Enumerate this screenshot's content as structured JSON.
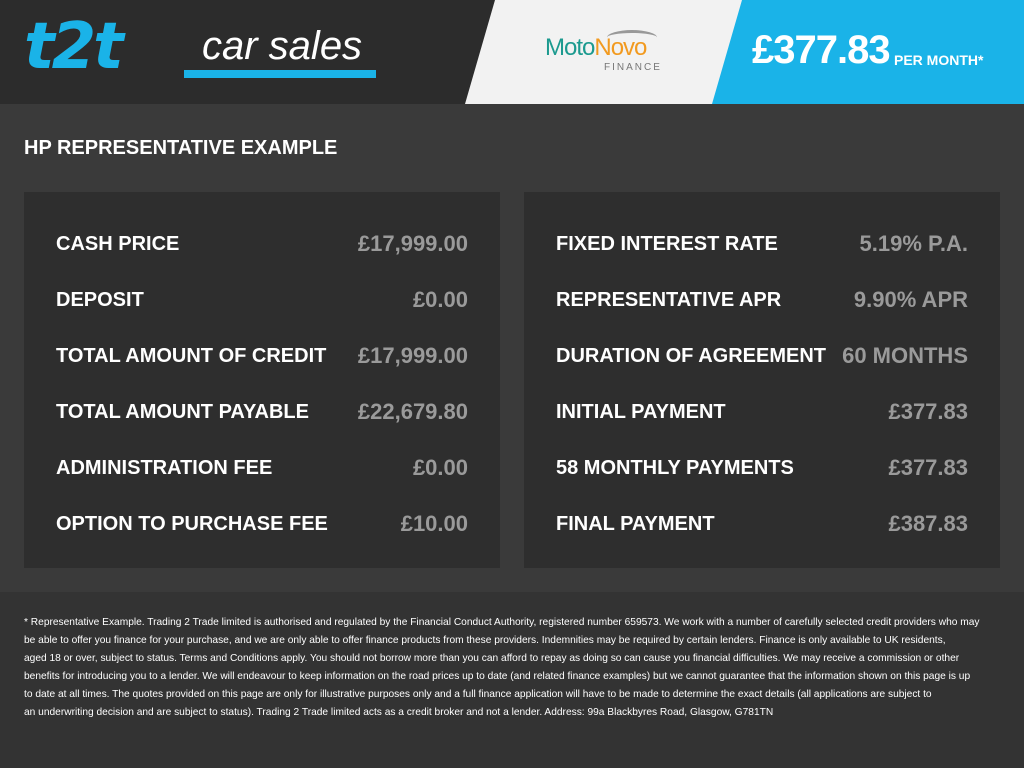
{
  "header": {
    "logo": {
      "mark": "t2t",
      "text": "car sales"
    },
    "partner": {
      "name_part1": "Moto",
      "name_part2": "Novo",
      "sub": "FINANCE"
    },
    "monthly_price": "£377.83",
    "per_month": "PER MONTH*"
  },
  "colors": {
    "accent": "#1ab3e8",
    "panel": "#2e2e2e",
    "background": "#3a3a3a",
    "value_text": "#9a9a9a"
  },
  "title": "HP REPRESENTATIVE EXAMPLE",
  "left_panel": [
    {
      "label": "CASH PRICE",
      "value": "£17,999.00"
    },
    {
      "label": "DEPOSIT",
      "value": "£0.00"
    },
    {
      "label": "TOTAL AMOUNT OF CREDIT",
      "value": "£17,999.00"
    },
    {
      "label": "TOTAL AMOUNT PAYABLE",
      "value": "£22,679.80"
    },
    {
      "label": "ADMINISTRATION FEE",
      "value": "£0.00"
    },
    {
      "label": "OPTION TO PURCHASE FEE",
      "value": "£10.00"
    }
  ],
  "right_panel": [
    {
      "label": "FIXED INTEREST RATE",
      "value": "5.19% P.A."
    },
    {
      "label": "REPRESENTATIVE APR",
      "value": "9.90% APR"
    },
    {
      "label": "DURATION OF AGREEMENT",
      "value": "60 MONTHS"
    },
    {
      "label": "INITIAL PAYMENT",
      "value": "£377.83"
    },
    {
      "label": "58 MONTHLY PAYMENTS",
      "value": "£377.83"
    },
    {
      "label": "FINAL PAYMENT",
      "value": "£387.83"
    }
  ],
  "disclaimer": [
    "* Representative Example. Trading 2 Trade limited is authorised and regulated by the Financial Conduct Authority, registered number 659573. We work with a number of carefully selected credit providers who may",
    "be able to offer you finance for your purchase, and we are only able to offer finance products from these providers. Indemnities may be required by certain lenders. Finance is only available to UK residents,",
    "aged 18 or over, subject to status. Terms and Conditions apply. You should not borrow more than you can afford to repay as doing so can cause you financial difficulties. We may receive a commission or other",
    "benefits for introducing you to a lender. We will endeavour to keep information on the road prices up to date (and related finance examples) but we cannot guarantee that the information shown on this page is up",
    "to date at all times. The quotes provided on this page are only for illustrative purposes only and a full finance application will have to be made to determine the exact details (all applications are subject to",
    "an underwriting decision and are subject to status). Trading 2 Trade limited acts as a credit broker and not a lender. Address: 99a Blackbyres Road, Glasgow, G781TN"
  ]
}
